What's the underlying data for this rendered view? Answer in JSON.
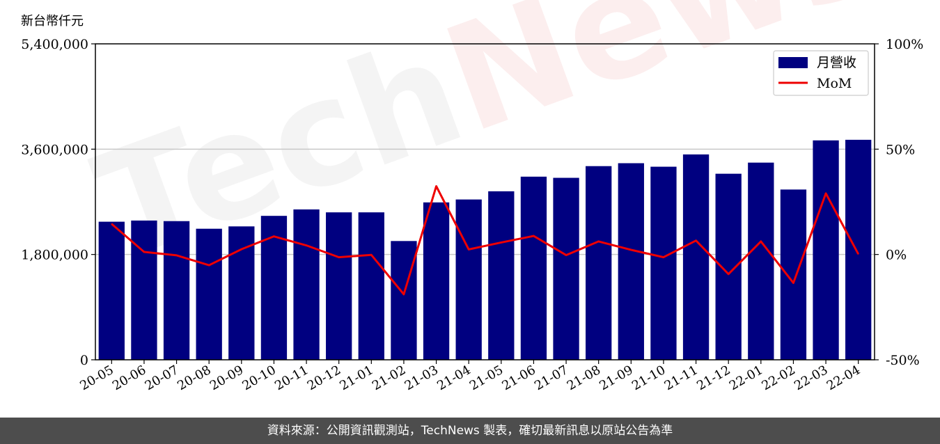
{
  "unit_label": "新台幣仟元",
  "footer_text": "資料來源：公開資訊觀測站，TechNews 製表，確切最新訊息以原站公告為準",
  "watermark": {
    "part1": "Tech",
    "part2": "News"
  },
  "colors": {
    "bar": "#000080",
    "line": "#ee0000",
    "grid": "#c8c8c8",
    "footer_bg": "#4d4d4d"
  },
  "chart_data": {
    "type": "bar",
    "categories": [
      "20-05",
      "20-06",
      "20-07",
      "20-08",
      "20-09",
      "20-10",
      "20-11",
      "20-12",
      "21-01",
      "21-02",
      "21-03",
      "21-04",
      "21-05",
      "21-06",
      "21-07",
      "21-08",
      "21-09",
      "21-10",
      "21-11",
      "21-12",
      "22-01",
      "22-02",
      "22-03",
      "22-04"
    ],
    "series": [
      {
        "name": "月營收",
        "type": "bar",
        "axis": "left",
        "values": [
          2360000,
          2380000,
          2370000,
          2240000,
          2280000,
          2460000,
          2570000,
          2520000,
          2520000,
          2030000,
          2690000,
          2740000,
          2880000,
          3130000,
          3110000,
          3310000,
          3360000,
          3300000,
          3510000,
          3180000,
          3370000,
          2910000,
          3750000,
          3760000
        ]
      },
      {
        "name": "MoM",
        "type": "line",
        "axis": "right",
        "values": [
          14.5,
          1.2,
          -0.4,
          -5.1,
          2.5,
          8.6,
          4.3,
          -1.3,
          -0.2,
          -18.9,
          32.4,
          2.4,
          5.7,
          8.8,
          -0.3,
          6.2,
          2.2,
          -1.3,
          6.6,
          -9.3,
          6.2,
          -13.5,
          29.0,
          0.2
        ]
      }
    ],
    "y_left": {
      "ylim": [
        0,
        5400000
      ],
      "ticks": [
        0,
        1800000,
        3600000,
        5400000
      ],
      "tick_labels": [
        "0",
        "1,800,000",
        "3,600,000",
        "5,400,000"
      ]
    },
    "y_right": {
      "ylim": [
        -50,
        100
      ],
      "ticks": [
        -50,
        0,
        50,
        100
      ],
      "tick_labels": [
        "-50%",
        "0%",
        "50%",
        "100%"
      ]
    },
    "grid": "horizontal",
    "legend_position": "top-right",
    "title": "",
    "xlabel": "",
    "ylabel": ""
  }
}
